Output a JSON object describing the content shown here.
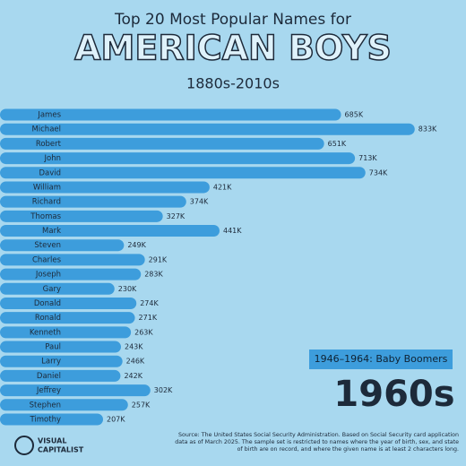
{
  "chart_data": {
    "type": "bar",
    "orientation": "horizontal",
    "title": "Top 20 Most Popular Names for",
    "headline": "AMERICAN BOYS",
    "subtitle": "1880s-2010s",
    "era_label": "1946–1964: Baby Boomers",
    "decade": "1960s",
    "source": "Source: The United States Social Security Administration. Based on Social Security card application data as of March 2025. The sample set is restricted to names where the year of birth, sex, and state of birth are on record, and where the given name is at least 2 characters long.",
    "brand": [
      "VISUAL",
      "CAPITALIST"
    ],
    "color": "#3d9ddc",
    "xlim": [
      0,
      900000
    ],
    "categories": [
      "James",
      "Michael",
      "Robert",
      "John",
      "David",
      "William",
      "Richard",
      "Thomas",
      "Mark",
      "Steven",
      "Charles",
      "Joseph",
      "Gary",
      "Donald",
      "Ronald",
      "Kenneth",
      "Paul",
      "Larry",
      "Daniel",
      "Jeffrey",
      "Stephen",
      "Timothy"
    ],
    "values": [
      685000,
      833000,
      651000,
      713000,
      734000,
      421000,
      374000,
      327000,
      441000,
      249000,
      291000,
      283000,
      230000,
      274000,
      271000,
      263000,
      243000,
      246000,
      242000,
      302000,
      257000,
      207000
    ],
    "value_labels": [
      "685K",
      "833K",
      "651K",
      "713K",
      "734K",
      "421K",
      "374K",
      "327K",
      "441K",
      "249K",
      "291K",
      "283K",
      "230K",
      "274K",
      "271K",
      "263K",
      "243K",
      "246K",
      "242K",
      "302K",
      "257K",
      "207K"
    ]
  }
}
